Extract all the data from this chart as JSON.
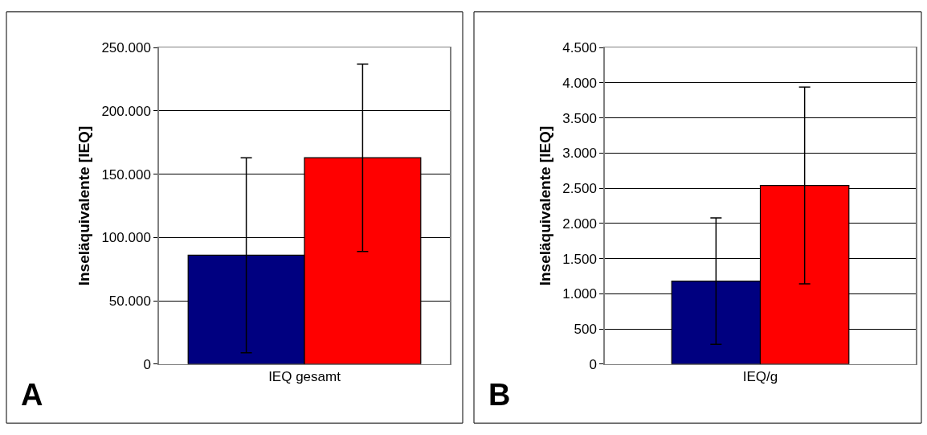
{
  "chart_data": [
    {
      "type": "bar",
      "ylabel": "Inseläquivalente [IEQ]",
      "categories": [
        "IEQ gesamt"
      ],
      "series": [
        {
          "color": "#000080",
          "values": [
            86000
          ],
          "errors": [
            77000
          ]
        },
        {
          "color": "#ff0000",
          "values": [
            163000
          ],
          "errors": [
            74000
          ]
        }
      ],
      "ylim": [
        0,
        250000
      ],
      "yticks": [
        {
          "value": 0,
          "label": "0"
        },
        {
          "value": 50000,
          "label": "50.000"
        },
        {
          "value": 100000,
          "label": "100.000"
        },
        {
          "value": 150000,
          "label": "150.000"
        },
        {
          "value": 200000,
          "label": "200.000"
        },
        {
          "value": 250000,
          "label": "250.000"
        }
      ],
      "grid": "y",
      "annotations": [
        "A"
      ]
    },
    {
      "type": "bar",
      "ylabel": "Inseläquivalente [IEQ]",
      "categories": [
        "IEQ/g"
      ],
      "series": [
        {
          "color": "#000080",
          "values": [
            1180
          ],
          "errors": [
            900
          ]
        },
        {
          "color": "#ff0000",
          "values": [
            2540
          ],
          "errors": [
            1400
          ]
        }
      ],
      "ylim": [
        0,
        4500
      ],
      "yticks": [
        {
          "value": 0,
          "label": "0"
        },
        {
          "value": 500,
          "label": "500"
        },
        {
          "value": 1000,
          "label": "1.000"
        },
        {
          "value": 1500,
          "label": "1.500"
        },
        {
          "value": 2000,
          "label": "2.000"
        },
        {
          "value": 2500,
          "label": "2.500"
        },
        {
          "value": 3000,
          "label": "3.000"
        },
        {
          "value": 3500,
          "label": "3.500"
        },
        {
          "value": 4000,
          "label": "4.000"
        },
        {
          "value": 4500,
          "label": "4.500"
        }
      ],
      "grid": "y",
      "annotations": [
        "B"
      ]
    }
  ]
}
